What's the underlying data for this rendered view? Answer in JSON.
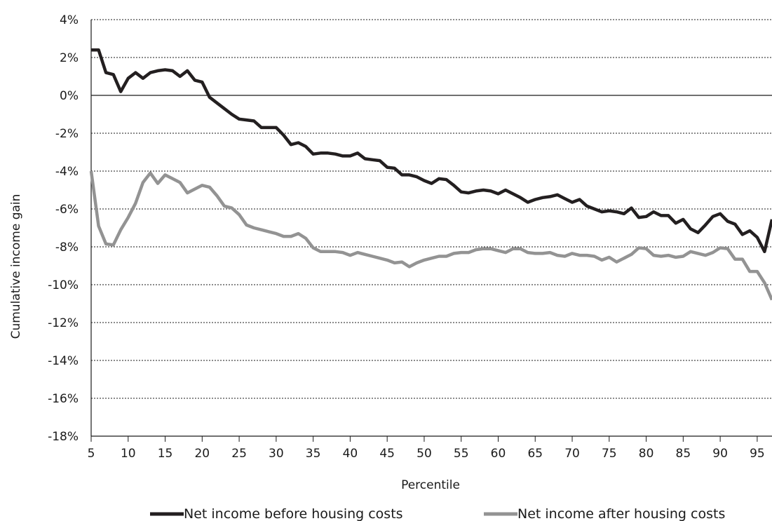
{
  "chart_data": {
    "type": "line",
    "xlabel": "Percentile",
    "ylabel": "Cumulative income gain",
    "xlim": [
      5,
      97
    ],
    "ylim": [
      -18,
      4
    ],
    "x_ticks": [
      5,
      10,
      15,
      20,
      25,
      30,
      35,
      40,
      45,
      50,
      55,
      60,
      65,
      70,
      75,
      80,
      85,
      90,
      95
    ],
    "y_ticks": [
      4,
      2,
      0,
      -2,
      -4,
      -6,
      -8,
      -10,
      -12,
      -14,
      -16,
      -18
    ],
    "y_tick_labels": [
      "4%",
      "2%",
      "0%",
      "-2%",
      "-4%",
      "-6%",
      "-8%",
      "-10%",
      "-12%",
      "-14%",
      "-16%",
      "-18%"
    ],
    "grid": "horizontal dotted",
    "zero_line": true,
    "legend_position": "bottom",
    "x": [
      5,
      6,
      7,
      8,
      9,
      10,
      11,
      12,
      13,
      14,
      15,
      16,
      17,
      18,
      19,
      20,
      21,
      22,
      23,
      24,
      25,
      26,
      27,
      28,
      29,
      30,
      31,
      32,
      33,
      34,
      35,
      36,
      37,
      38,
      39,
      40,
      41,
      42,
      43,
      44,
      45,
      46,
      47,
      48,
      49,
      50,
      51,
      52,
      53,
      54,
      55,
      56,
      57,
      58,
      59,
      60,
      61,
      62,
      63,
      64,
      65,
      66,
      67,
      68,
      69,
      70,
      71,
      72,
      73,
      74,
      75,
      76,
      77,
      78,
      79,
      80,
      81,
      82,
      83,
      84,
      85,
      86,
      87,
      88,
      89,
      90,
      91,
      92,
      93,
      94,
      95,
      96,
      97
    ],
    "series": [
      {
        "name": "Net income before housing costs",
        "color": "#231f20",
        "values": [
          2.4,
          2.4,
          1.2,
          1.1,
          0.2,
          0.9,
          1.2,
          0.9,
          1.2,
          1.3,
          1.35,
          1.3,
          1.0,
          1.3,
          0.8,
          0.7,
          -0.1,
          -0.4,
          -0.7,
          -1.0,
          -1.25,
          -1.3,
          -1.35,
          -1.7,
          -1.7,
          -1.7,
          -2.1,
          -2.6,
          -2.5,
          -2.7,
          -3.1,
          -3.05,
          -3.05,
          -3.1,
          -3.2,
          -3.2,
          -3.05,
          -3.35,
          -3.4,
          -3.45,
          -3.8,
          -3.85,
          -4.2,
          -4.2,
          -4.3,
          -4.5,
          -4.65,
          -4.4,
          -4.45,
          -4.75,
          -5.1,
          -5.15,
          -5.05,
          -5.0,
          -5.05,
          -5.2,
          -5.0,
          -5.2,
          -5.4,
          -5.65,
          -5.5,
          -5.4,
          -5.35,
          -5.25,
          -5.45,
          -5.65,
          -5.5,
          -5.85,
          -6.0,
          -6.15,
          -6.1,
          -6.15,
          -6.25,
          -5.95,
          -6.45,
          -6.4,
          -6.15,
          -6.35,
          -6.35,
          -6.75,
          -6.55,
          -7.05,
          -7.25,
          -6.85,
          -6.4,
          -6.25,
          -6.65,
          -6.8,
          -7.35,
          -7.15,
          -7.5,
          -8.25,
          -6.55
        ]
      },
      {
        "name": "Net income after housing costs",
        "color": "#939393",
        "values": [
          -4.0,
          -6.9,
          -7.85,
          -7.9,
          -7.1,
          -6.45,
          -5.7,
          -4.6,
          -4.1,
          -4.65,
          -4.2,
          -4.4,
          -4.6,
          -5.15,
          -4.95,
          -4.75,
          -4.85,
          -5.3,
          -5.85,
          -5.95,
          -6.3,
          -6.85,
          -7.0,
          -7.1,
          -7.2,
          -7.3,
          -7.45,
          -7.45,
          -7.3,
          -7.55,
          -8.05,
          -8.25,
          -8.25,
          -8.25,
          -8.3,
          -8.45,
          -8.3,
          -8.4,
          -8.5,
          -8.6,
          -8.7,
          -8.85,
          -8.8,
          -9.05,
          -8.85,
          -8.7,
          -8.6,
          -8.5,
          -8.5,
          -8.35,
          -8.3,
          -8.3,
          -8.15,
          -8.1,
          -8.1,
          -8.2,
          -8.3,
          -8.1,
          -8.1,
          -8.3,
          -8.35,
          -8.35,
          -8.3,
          -8.45,
          -8.5,
          -8.35,
          -8.45,
          -8.45,
          -8.5,
          -8.7,
          -8.55,
          -8.8,
          -8.6,
          -8.4,
          -8.05,
          -8.1,
          -8.45,
          -8.5,
          -8.45,
          -8.55,
          -8.5,
          -8.25,
          -8.35,
          -8.45,
          -8.3,
          -8.05,
          -8.1,
          -8.65,
          -8.65,
          -9.3,
          -9.3,
          -9.9,
          -10.8
        ]
      }
    ]
  }
}
